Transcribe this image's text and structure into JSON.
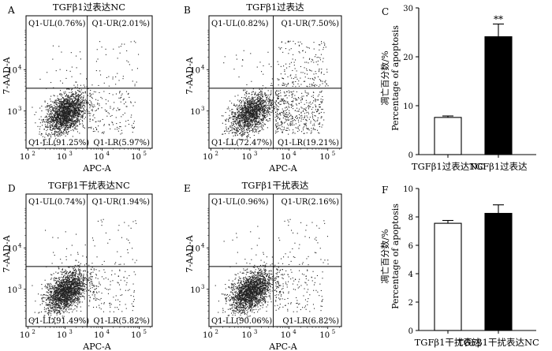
{
  "panels": [
    {
      "letter": "A",
      "title": "TGFβ1过表达NC",
      "quadrants": {
        "ul": "Q1-UL(0.76%)",
        "ur": "Q1-UR(2.01%)",
        "ll": "Q1-LL(91.25%)",
        "lr": "Q1-LR(5.97%)"
      },
      "xlabel": "APC-A",
      "ylabel": "7-AAD-A",
      "x_ticks": [
        "10",
        "10",
        "10",
        "10"
      ],
      "x_tick_exps": [
        "2",
        "3",
        "4",
        "5"
      ],
      "y_ticks": [
        "10",
        "10"
      ],
      "y_tick_exps": [
        "4",
        "3"
      ]
    },
    {
      "letter": "B",
      "title": "TGFβ1过表达",
      "quadrants": {
        "ul": "Q1-UL(0.82%)",
        "ur": "Q1-UR(7.50%)",
        "ll": "Q1-LL(72.47%)",
        "lr": "Q1-LR(19.21%)"
      },
      "xlabel": "APC-A",
      "ylabel": "7-AAD-A",
      "x_ticks": [
        "10",
        "10",
        "10",
        "10"
      ],
      "x_tick_exps": [
        "2",
        "3",
        "4",
        "5"
      ],
      "y_ticks": [
        "10",
        "10"
      ],
      "y_tick_exps": [
        "4",
        "3"
      ]
    },
    {
      "letter": "D",
      "title": "TGFβ1干扰表达NC",
      "quadrants": {
        "ul": "Q1-UL(0.74%)",
        "ur": "Q1-UR(1.94%)",
        "ll": "Q1-LL(91.49%)",
        "lr": "Q1-LR(5.82%)"
      },
      "xlabel": "APC-A",
      "ylabel": "7-AAD-A",
      "x_ticks": [
        "10",
        "10",
        "10",
        "10"
      ],
      "x_tick_exps": [
        "2",
        "3",
        "4",
        "5"
      ],
      "y_ticks": [
        "10",
        "10"
      ],
      "y_tick_exps": [
        "4",
        "3"
      ]
    },
    {
      "letter": "E",
      "title": "TGFβ1干扰表达",
      "quadrants": {
        "ul": "Q1-UL(0.96%)",
        "ur": "Q1-UR(2.16%)",
        "ll": "Q1-LL(90.06%)",
        "lr": "Q1-LR(6.82%)"
      },
      "xlabel": "APC-A",
      "ylabel": "7-AAD-A",
      "x_ticks": [
        "10",
        "10",
        "10",
        "10"
      ],
      "x_tick_exps": [
        "2",
        "3",
        "4",
        "5"
      ],
      "y_ticks": [
        "10",
        "10"
      ],
      "y_tick_exps": [
        "4",
        "3"
      ]
    }
  ],
  "chart_data": [
    {
      "type": "scatter",
      "panel": "A",
      "title": "TGFβ1过表达NC",
      "xlabel": "APC-A",
      "ylabel": "7-AAD-A",
      "x_scale": "log",
      "y_scale": "log",
      "quadrant_percentages": {
        "UL": 0.76,
        "UR": 2.01,
        "LL": 91.25,
        "LR": 5.97
      }
    },
    {
      "type": "scatter",
      "panel": "B",
      "title": "TGFβ1过表达",
      "xlabel": "APC-A",
      "ylabel": "7-AAD-A",
      "x_scale": "log",
      "y_scale": "log",
      "quadrant_percentages": {
        "UL": 0.82,
        "UR": 7.5,
        "LL": 72.47,
        "LR": 19.21
      }
    },
    {
      "type": "bar",
      "panel": "C",
      "categories": [
        "TGFβ1过表达NC",
        "TGFβ1过表达"
      ],
      "values": [
        7.6,
        24.1
      ],
      "errors": [
        0.3,
        2.6
      ],
      "bar_colors": [
        "#ffffff",
        "#000000"
      ],
      "ylabel_cn": "凋亡百分数/%",
      "ylabel_en": "Percentage of apoptosis",
      "ylim": [
        0,
        30
      ],
      "yticks": [
        "0",
        "10",
        "20",
        "30"
      ],
      "annotations": [
        {
          "category": "TGFβ1过表达",
          "text": "**"
        }
      ]
    },
    {
      "type": "scatter",
      "panel": "D",
      "title": "TGFβ1干扰表达NC",
      "xlabel": "APC-A",
      "ylabel": "7-AAD-A",
      "x_scale": "log",
      "y_scale": "log",
      "quadrant_percentages": {
        "UL": 0.74,
        "UR": 1.94,
        "LL": 91.49,
        "LR": 5.82
      }
    },
    {
      "type": "scatter",
      "panel": "E",
      "title": "TGFβ1干扰表达",
      "xlabel": "APC-A",
      "ylabel": "7-AAD-A",
      "x_scale": "log",
      "y_scale": "log",
      "quadrant_percentages": {
        "UL": 0.96,
        "UR": 2.16,
        "LL": 90.06,
        "LR": 6.82
      }
    },
    {
      "type": "bar",
      "panel": "F",
      "categories": [
        "TGFβ1干扰表达",
        "TGFβ1干扰表达NC"
      ],
      "values": [
        7.55,
        8.25
      ],
      "errors": [
        0.2,
        0.6
      ],
      "bar_colors": [
        "#ffffff",
        "#000000"
      ],
      "ylabel_cn": "凋亡百分数/%",
      "ylabel_en": "Percentage of apoptosis",
      "ylim": [
        0,
        10
      ],
      "yticks": [
        "0",
        "2",
        "4",
        "6",
        "8",
        "10"
      ]
    }
  ]
}
